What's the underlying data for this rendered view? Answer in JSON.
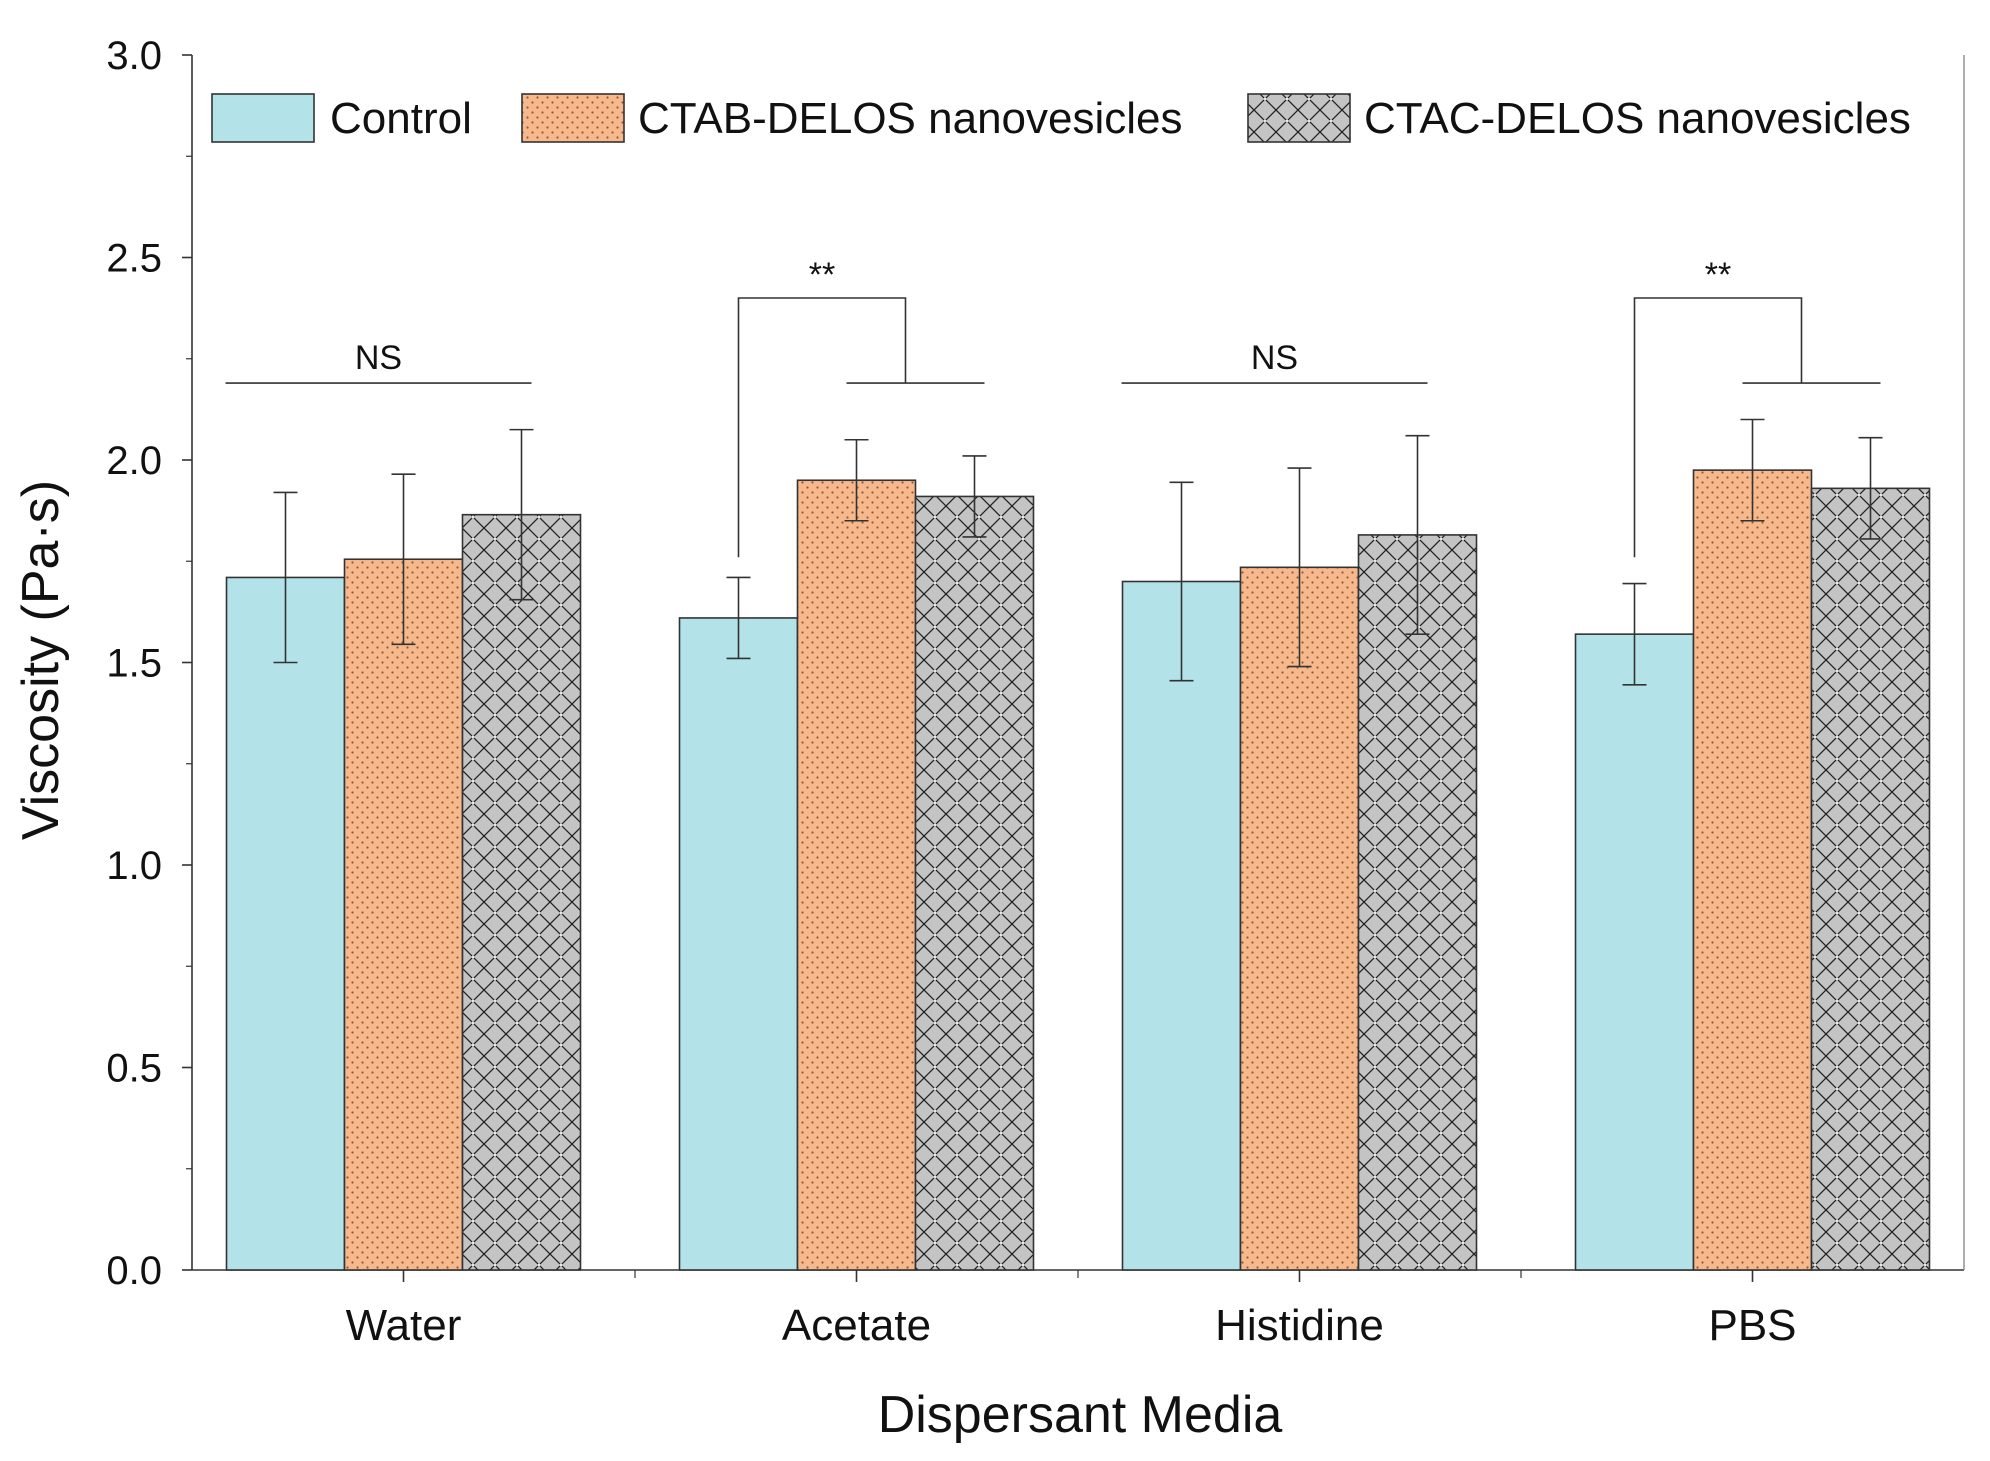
{
  "chart_data": {
    "type": "bar",
    "title": "",
    "xlabel": "Dispersant Media",
    "ylabel": "Viscosity (Pa·s)",
    "ylim": [
      0,
      3.0
    ],
    "yticks": [
      "0.0",
      "0.5",
      "1.0",
      "1.5",
      "2.0",
      "2.5",
      "3.0"
    ],
    "categories": [
      "Water",
      "Acetate",
      "Histidine",
      "PBS"
    ],
    "legend_position": "top",
    "series": [
      {
        "name": "Control",
        "values": [
          1.71,
          1.61,
          1.7,
          1.57
        ],
        "errors": [
          0.21,
          0.1,
          0.245,
          0.125
        ],
        "color": "#b3e3e8",
        "pattern": "none"
      },
      {
        "name": "CTAB-DELOS nanovesicles",
        "values": [
          1.755,
          1.95,
          1.735,
          1.975
        ],
        "errors": [
          0.21,
          0.1,
          0.245,
          0.125
        ],
        "color": "#f7b98c",
        "pattern": "dots"
      },
      {
        "name": "CTAC-DELOS nanovesicles",
        "values": [
          1.865,
          1.91,
          1.815,
          1.93
        ],
        "errors": [
          0.21,
          0.1,
          0.245,
          0.125
        ],
        "color": "#c4c4c4",
        "pattern": "crosshatch"
      }
    ],
    "annotations": [
      {
        "category": "Water",
        "text": "NS",
        "type": "line"
      },
      {
        "category": "Acetate",
        "text": "**",
        "type": "bracket"
      },
      {
        "category": "Histidine",
        "text": "NS",
        "type": "line"
      },
      {
        "category": "PBS",
        "text": "**",
        "type": "bracket"
      }
    ]
  }
}
